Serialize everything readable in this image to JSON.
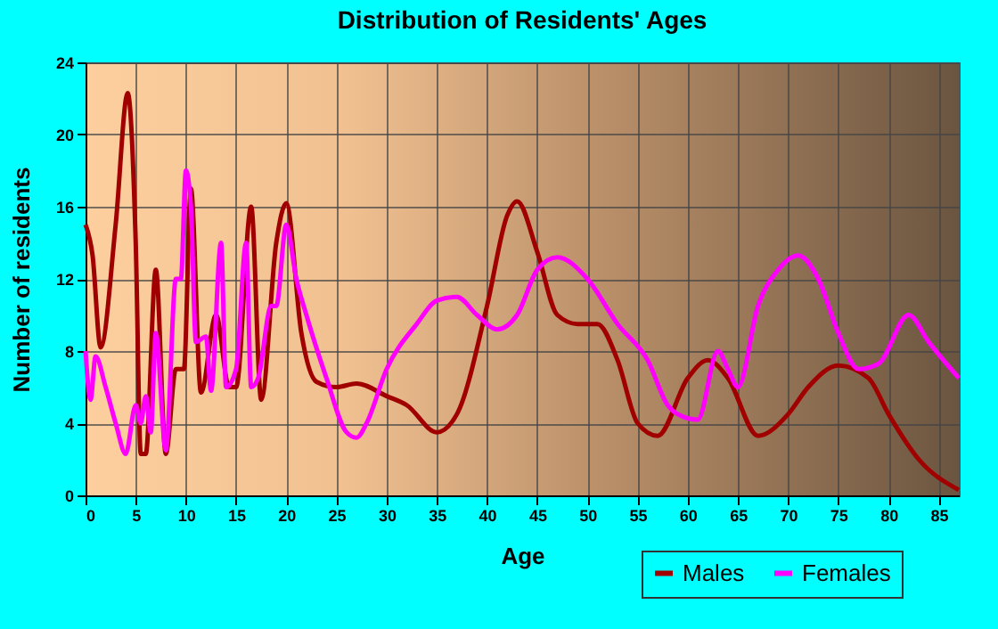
{
  "chart_data": {
    "type": "line",
    "title": "Distribution of Residents' Ages",
    "xlabel": "Age",
    "ylabel": "Number of residents",
    "xlim": [
      0,
      87
    ],
    "xticks": [
      0,
      5,
      10,
      15,
      20,
      25,
      30,
      35,
      40,
      45,
      50,
      55,
      60,
      65,
      70,
      75,
      80,
      85
    ],
    "ylim": [
      0,
      24
    ],
    "yticks": [
      0,
      4,
      8,
      12,
      16,
      20,
      24
    ],
    "grid": true,
    "legend": "bottom right",
    "marker": "none",
    "line_style": "solid",
    "series": [
      {
        "name": "Males",
        "color": "#a00000",
        "x": [
          0,
          0.7,
          1.5,
          3,
          4.2,
          5,
          5.5,
          6,
          7,
          8,
          9,
          9.8,
          10.5,
          11.5,
          13,
          14.3,
          15,
          16.5,
          17.5,
          19,
          20,
          21.5,
          23,
          25,
          27,
          30,
          32,
          35,
          37,
          40,
          42,
          43,
          45,
          47,
          49,
          51,
          53,
          55,
          57,
          60,
          62,
          64,
          67,
          70,
          72,
          75,
          78,
          80,
          83,
          87
        ],
        "values": [
          15,
          13.3,
          8.2,
          15,
          22.3,
          14,
          2.3,
          2.3,
          12.5,
          2.3,
          7,
          7,
          17,
          5.7,
          10,
          6,
          6,
          16,
          5.3,
          14,
          16.2,
          9,
          6.3,
          6,
          6.2,
          5.5,
          5,
          3.5,
          4.5,
          10.5,
          15.5,
          16.3,
          13.5,
          10,
          9.5,
          9.5,
          7.5,
          4,
          3.3,
          6.5,
          7.5,
          6.5,
          3.3,
          4.5,
          6,
          7.2,
          6.5,
          4.5,
          2,
          0.3
        ]
      },
      {
        "name": "Females",
        "color": "#ff00ff",
        "x": [
          0,
          0.5,
          1,
          2,
          3,
          4,
          5,
          5.5,
          6,
          6.5,
          7,
          8,
          9,
          9.5,
          10,
          10.5,
          11,
          12,
          12.5,
          13.5,
          14,
          15,
          16,
          16.5,
          17.2,
          18.5,
          19,
          20,
          21,
          22,
          24,
          26,
          27,
          28,
          30,
          33,
          35,
          37,
          39,
          41,
          43,
          45,
          47,
          50,
          53,
          56,
          58,
          59,
          61,
          63,
          64,
          65,
          67,
          69,
          71,
          73,
          75,
          77,
          79,
          82,
          84,
          87
        ],
        "values": [
          8,
          5.3,
          7.7,
          6,
          4,
          2.3,
          5,
          4,
          5.5,
          3.5,
          9,
          2.5,
          12,
          12,
          18,
          16,
          8.5,
          8.8,
          5.8,
          14,
          6,
          7,
          14,
          6,
          6.5,
          10.5,
          10.5,
          15,
          12,
          10,
          6.5,
          3.5,
          3.2,
          4,
          7,
          9.5,
          10.8,
          11,
          10,
          9.2,
          10,
          12.5,
          13.2,
          12,
          9.5,
          7.5,
          5,
          4.5,
          4.2,
          8,
          7,
          6,
          10.5,
          12.5,
          13.3,
          12,
          9,
          7,
          7.3,
          10,
          8.5,
          6.5
        ]
      }
    ]
  }
}
